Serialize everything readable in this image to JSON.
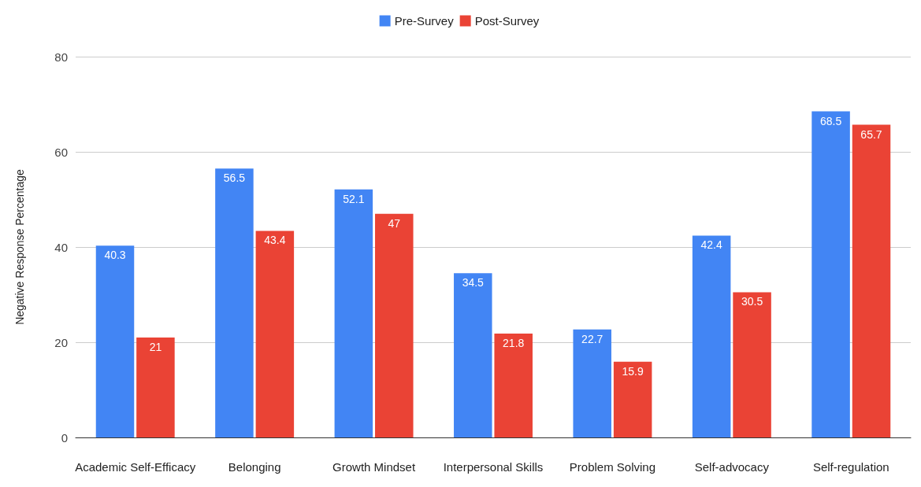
{
  "chart_data": {
    "type": "bar",
    "ylabel": "Negative Response Percentage",
    "categories": [
      "Academic Self-Efficacy",
      "Belonging",
      "Growth Mindset",
      "Interpersonal Skills",
      "Problem Solving",
      "Self-advocacy",
      "Self-regulation"
    ],
    "series": [
      {
        "name": "Pre-Survey",
        "color": "#4285f4",
        "values": [
          40.3,
          56.5,
          52.1,
          34.5,
          22.7,
          42.4,
          68.5
        ]
      },
      {
        "name": "Post-Survey",
        "color": "#ea4335",
        "values": [
          21,
          43.4,
          47,
          21.8,
          15.9,
          30.5,
          65.7
        ]
      }
    ],
    "ylim": [
      0,
      80
    ],
    "yticks": [
      0,
      20,
      40,
      60,
      80
    ],
    "grid": "y",
    "legend": "top",
    "data_labels": true
  }
}
